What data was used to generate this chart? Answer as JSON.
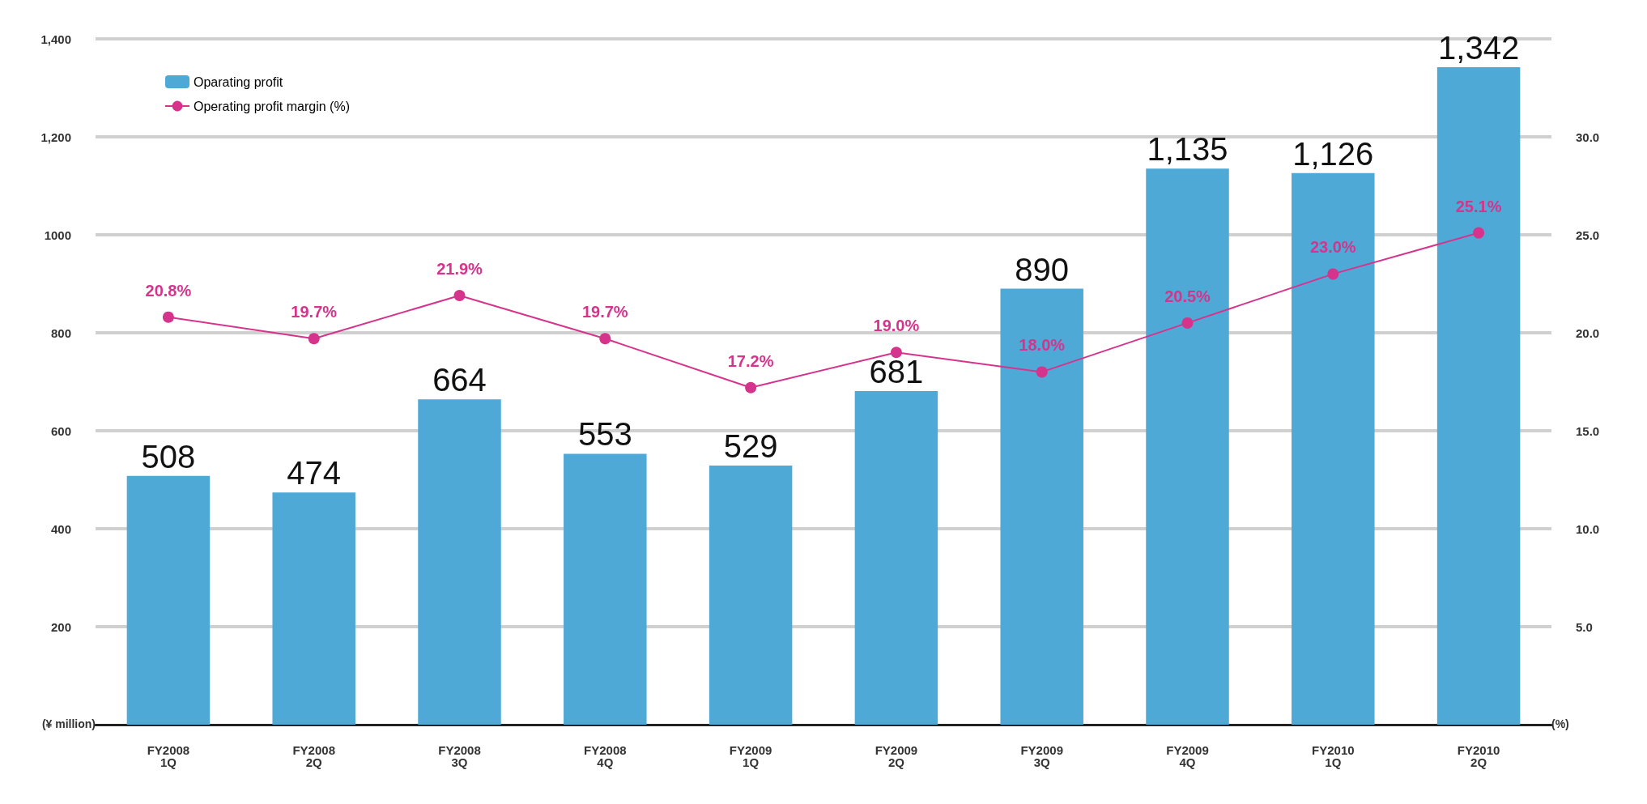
{
  "chart_data": {
    "type": "bar",
    "categories": [
      "FY2008\n1Q",
      "FY2008\n2Q",
      "FY2008\n3Q",
      "FY2008\n4Q",
      "FY2009\n1Q",
      "FY2009\n2Q",
      "FY2009\n3Q",
      "FY2009\n4Q",
      "FY2010\n1Q",
      "FY2010\n2Q"
    ],
    "series": [
      {
        "name": "Oparating profit",
        "color": "#4fa9d6",
        "values": [
          508,
          474,
          664,
          553,
          529,
          681,
          890,
          1135,
          1126,
          1342
        ],
        "value_labels": [
          "508",
          "474",
          "664",
          "553",
          "529",
          "681",
          "890",
          "1,135",
          "1,126",
          "1,342"
        ]
      },
      {
        "name": "Operating profit margin (%)",
        "type": "line",
        "axis": "y2",
        "color": "#d6348c",
        "values": [
          20.8,
          19.7,
          21.9,
          19.7,
          17.2,
          19.0,
          18.0,
          20.5,
          23.0,
          25.1
        ],
        "value_labels": [
          "20.8%",
          "19.7%",
          "21.9%",
          "19.7%",
          "17.2%",
          "19.0%",
          "18.0%",
          "20.5%",
          "23.0%",
          "25.1%"
        ]
      }
    ],
    "ylabel": "(¥ million)",
    "y2label": "(%)",
    "ylim": [
      0,
      1400
    ],
    "yticks": [
      200,
      400,
      600,
      800,
      1000,
      {
        "value": 1200,
        "label": "1,200"
      },
      {
        "value": 1400,
        "label": "1,400"
      }
    ],
    "y2lim": [
      0,
      35
    ],
    "y2ticks": [
      {
        "value": 5,
        "label": "5.0"
      },
      {
        "value": 10,
        "label": "10.0"
      },
      {
        "value": 15,
        "label": "15.0"
      },
      {
        "value": 20,
        "label": "20.0"
      },
      {
        "value": 25,
        "label": "25.0"
      },
      {
        "value": 30,
        "label": "30.0"
      }
    ],
    "grid": "y",
    "legend": "top left",
    "marker": "circle",
    "line_style": "solid"
  }
}
